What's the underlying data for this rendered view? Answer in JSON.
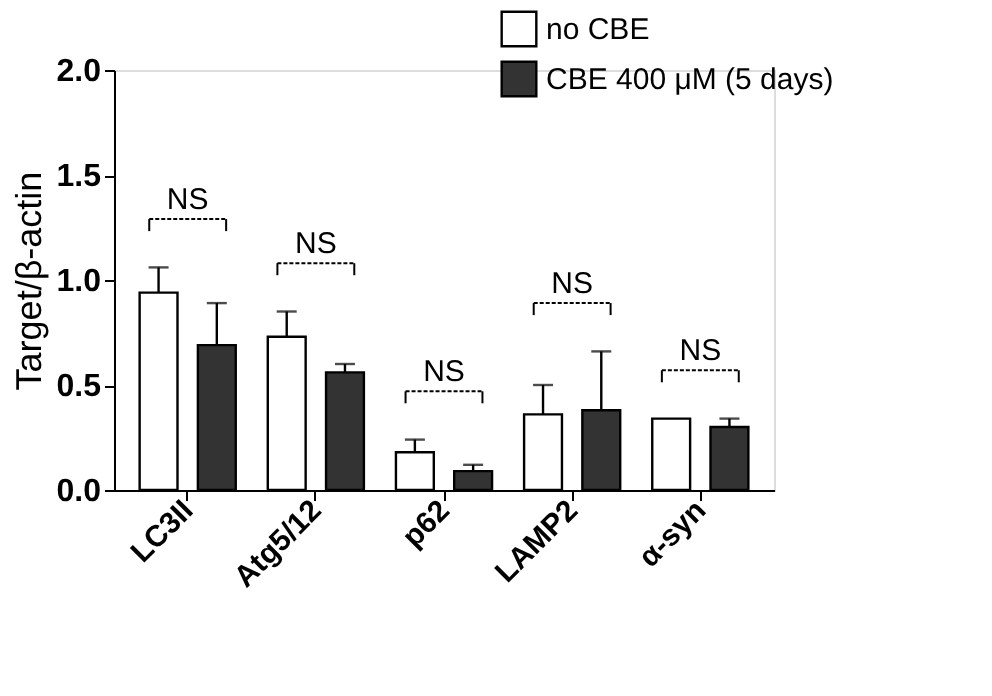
{
  "chart_data": {
    "type": "bar",
    "ylabel": "Target/β-actin",
    "categories": [
      "LC3II",
      "Atg5/12",
      "p62",
      "LAMP2",
      "α-syn"
    ],
    "series": [
      {
        "name": "no CBE",
        "color": "#ffffff",
        "values": [
          0.94,
          0.73,
          0.18,
          0.36,
          0.34
        ],
        "errors": [
          [
            0.94,
            1.06
          ],
          [
            0.73,
            0.85
          ],
          [
            0.18,
            0.24
          ],
          [
            0.36,
            0.5
          ],
          null
        ]
      },
      {
        "name": "CBE 400 μM (5 days)",
        "color": "#333333",
        "values": [
          0.69,
          0.56,
          0.09,
          0.38,
          0.3
        ],
        "errors": [
          [
            0.69,
            0.89
          ],
          [
            0.56,
            0.6
          ],
          [
            0.09,
            0.12
          ],
          [
            0.38,
            0.66
          ],
          [
            0.3,
            0.34
          ]
        ]
      }
    ],
    "ylim": [
      0,
      2
    ],
    "yticks": [
      {
        "value": 0,
        "label": "0.0"
      },
      {
        "value": 0.5,
        "label": "0.5"
      },
      {
        "value": 1,
        "label": "1.0"
      },
      {
        "value": 1.5,
        "label": "1.5"
      },
      {
        "value": 2,
        "label": "2.0"
      }
    ],
    "annotations": [
      "NS",
      "NS",
      "NS",
      "NS",
      "NS"
    ],
    "legend": "top right",
    "grid": false
  }
}
